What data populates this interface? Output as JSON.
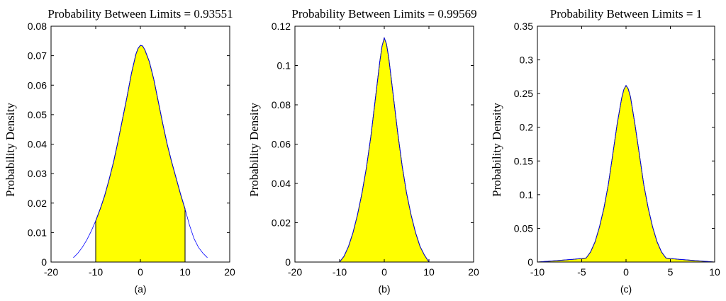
{
  "chart_data": [
    {
      "type": "area",
      "title": "Probability Between Limits = 0.93551",
      "ylabel": "Probability Density",
      "caption": "(a)",
      "xlim": [
        -20,
        20
      ],
      "ylim": [
        0,
        0.08
      ],
      "xticks": [
        -20,
        -10,
        0,
        10,
        20
      ],
      "yticks": [
        0,
        0.01,
        0.02,
        0.03,
        0.04,
        0.05,
        0.06,
        0.07,
        0.08
      ],
      "ytick_labels": [
        "0",
        "0.01",
        "0.02",
        "0.03",
        "0.04",
        "0.05",
        "0.06",
        "0.07",
        "0.08"
      ],
      "shade_range": [
        -10,
        10
      ],
      "x": [
        -15,
        -14,
        -13,
        -12,
        -11,
        -10,
        -9,
        -8,
        -7,
        -6,
        -5,
        -4,
        -3,
        -2,
        -1,
        -0.5,
        0,
        0.5,
        1,
        2,
        3,
        4,
        5,
        6,
        7,
        8,
        9,
        10,
        11,
        12,
        13,
        14,
        15
      ],
      "y": [
        0.0015,
        0.003,
        0.005,
        0.0075,
        0.0105,
        0.014,
        0.018,
        0.0225,
        0.028,
        0.034,
        0.041,
        0.0485,
        0.056,
        0.064,
        0.0705,
        0.0725,
        0.0735,
        0.0733,
        0.072,
        0.068,
        0.062,
        0.0545,
        0.047,
        0.04,
        0.034,
        0.0285,
        0.023,
        0.018,
        0.0125,
        0.008,
        0.005,
        0.003,
        0.0015
      ]
    },
    {
      "type": "area",
      "title": "Probability Between Limits = 0.99569",
      "ylabel": "Probability Density",
      "caption": "(b)",
      "xlim": [
        -20,
        20
      ],
      "ylim": [
        0,
        0.12
      ],
      "xticks": [
        -20,
        -10,
        0,
        10,
        20
      ],
      "yticks": [
        0,
        0.02,
        0.04,
        0.06,
        0.08,
        0.1,
        0.12
      ],
      "ytick_labels": [
        "0",
        "0.02",
        "0.04",
        "0.06",
        "0.08",
        "0.1",
        "0.12"
      ],
      "shade_range": [
        -10,
        10
      ],
      "x": [
        -20,
        -12,
        -10,
        -9,
        -8,
        -7,
        -6,
        -5,
        -4,
        -3,
        -2,
        -1,
        -0.5,
        0,
        0.5,
        1,
        2,
        3,
        4,
        5,
        6,
        7,
        8,
        9,
        10,
        12,
        20
      ],
      "y": [
        0,
        0,
        0,
        0.003,
        0.008,
        0.015,
        0.024,
        0.035,
        0.048,
        0.064,
        0.083,
        0.102,
        0.11,
        0.114,
        0.111,
        0.104,
        0.085,
        0.066,
        0.049,
        0.035,
        0.024,
        0.015,
        0.008,
        0.0035,
        0,
        0,
        0
      ]
    },
    {
      "type": "area",
      "title": "Probability Between Limits = 1",
      "ylabel": "Probability Density",
      "caption": "(c)",
      "xlim": [
        -10,
        10
      ],
      "ylim": [
        0,
        0.35
      ],
      "xticks": [
        -10,
        -5,
        0,
        5,
        10
      ],
      "yticks": [
        0,
        0.05,
        0.1,
        0.15,
        0.2,
        0.25,
        0.3,
        0.35
      ],
      "ytick_labels": [
        "0",
        "0.05",
        "0.1",
        "0.15",
        "0.2",
        "0.25",
        "0.3",
        "0.35"
      ],
      "shade_range": [
        -10,
        10
      ],
      "x": [
        -10,
        -8,
        -6,
        -4.5,
        -4,
        -3.5,
        -3,
        -2.5,
        -2,
        -1.5,
        -1,
        -0.5,
        -0.25,
        0,
        0.25,
        0.5,
        1,
        1.5,
        2,
        2.5,
        3,
        3.5,
        4,
        4.5,
        6,
        8,
        10
      ],
      "y": [
        0,
        0.002,
        0.004,
        0.006,
        0.015,
        0.03,
        0.052,
        0.08,
        0.115,
        0.16,
        0.205,
        0.243,
        0.256,
        0.262,
        0.257,
        0.245,
        0.205,
        0.16,
        0.115,
        0.08,
        0.052,
        0.03,
        0.015,
        0.006,
        0.004,
        0.002,
        0
      ]
    }
  ]
}
